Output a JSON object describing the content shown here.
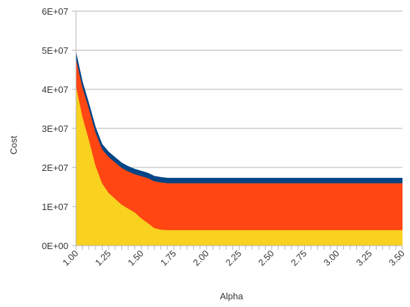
{
  "chart_data": {
    "type": "area",
    "stacked": true,
    "xlabel": "Alpha",
    "ylabel": "Cost",
    "xlim": [
      1.0,
      3.5
    ],
    "ylim": [
      0,
      60000000
    ],
    "x_tick_labels": [
      "1.00",
      "1.25",
      "1.50",
      "1.75",
      "2.00",
      "2.25",
      "2.50",
      "2.75",
      "3.00",
      "3.25",
      "3.50"
    ],
    "y_tick_labels": [
      "0E+00",
      "1E+07",
      "2E+07",
      "3E+07",
      "4E+07",
      "5E+07",
      "6E+07"
    ],
    "grid": "horizontal",
    "legend": "none",
    "x": [
      1.0,
      1.05,
      1.1,
      1.15,
      1.2,
      1.25,
      1.3,
      1.35,
      1.4,
      1.45,
      1.5,
      1.55,
      1.6,
      1.65,
      1.7,
      1.75,
      2.0,
      2.25,
      2.5,
      2.75,
      3.0,
      3.25,
      3.5
    ],
    "series": [
      {
        "color": "#F9D11F",
        "values": [
          41000000,
          33000000,
          27000000,
          20500000,
          16000000,
          13500000,
          12000000,
          10500000,
          9500000,
          8500000,
          7000000,
          5800000,
          4500000,
          4100000,
          4000000,
          4000000,
          4000000,
          4000000,
          4000000,
          4000000,
          4000000,
          4000000,
          4000000
        ]
      },
      {
        "color": "#FF4613",
        "values": [
          7000000,
          7500000,
          8000000,
          8500000,
          8700000,
          9200000,
          9300000,
          9400000,
          9500000,
          9800000,
          10800000,
          11500000,
          12000000,
          12100000,
          12000000,
          12000000,
          12000000,
          12000000,
          12000000,
          12000000,
          12000000,
          12000000,
          12000000
        ]
      },
      {
        "color": "#004586",
        "values": [
          1500000,
          1400000,
          1300000,
          1300000,
          1300000,
          1300000,
          1300000,
          1300000,
          1300000,
          1300000,
          1300000,
          1300000,
          1300000,
          1300000,
          1300000,
          1300000,
          1300000,
          1300000,
          1300000,
          1300000,
          1300000,
          1300000,
          1300000
        ]
      }
    ]
  }
}
